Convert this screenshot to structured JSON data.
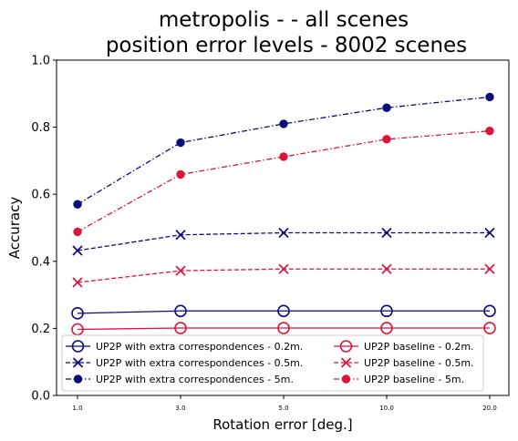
{
  "chart_data": {
    "type": "line",
    "title_line1": "metropolis -  - all scenes",
    "title_line2": "position error levels - 8002 scenes",
    "xlabel": "Rotation error [deg.]",
    "ylabel": "Accuracy",
    "categories": [
      "1.0",
      "3.0",
      "5.0",
      "10.0",
      "20.0"
    ],
    "ylim": [
      0.0,
      1.0
    ],
    "yticks": [
      "0.0",
      "0.2",
      "0.4",
      "0.6",
      "0.8",
      "1.0"
    ],
    "grid": false,
    "legend_position": "lower-center",
    "series": [
      {
        "name": "UP2P with extra correspondences - 0.2m.",
        "values": [
          0.245,
          0.252,
          0.252,
          0.252,
          0.252
        ],
        "color": "#0b0b7a",
        "marker": "open-circle",
        "line": "solid"
      },
      {
        "name": "UP2P with extra correspondences - 0.5m.",
        "values": [
          0.432,
          0.479,
          0.485,
          0.485,
          0.485
        ],
        "color": "#0b0b7a",
        "marker": "x",
        "line": "dashed"
      },
      {
        "name": "UP2P with extra correspondences - 5m.",
        "values": [
          0.57,
          0.754,
          0.81,
          0.858,
          0.89
        ],
        "color": "#0b0b7a",
        "marker": "dot",
        "line": "dashdot"
      },
      {
        "name": "UP2P baseline - 0.2m.",
        "values": [
          0.197,
          0.201,
          0.201,
          0.201,
          0.201
        ],
        "color": "#dc143c",
        "marker": "open-circle",
        "line": "solid"
      },
      {
        "name": "UP2P baseline - 0.5m.",
        "values": [
          0.337,
          0.372,
          0.377,
          0.377,
          0.377
        ],
        "color": "#dc143c",
        "marker": "x",
        "line": "dashed"
      },
      {
        "name": "UP2P baseline - 5m.",
        "values": [
          0.488,
          0.659,
          0.712,
          0.764,
          0.789
        ],
        "color": "#dc143c",
        "marker": "dot",
        "line": "dashdot"
      }
    ]
  }
}
